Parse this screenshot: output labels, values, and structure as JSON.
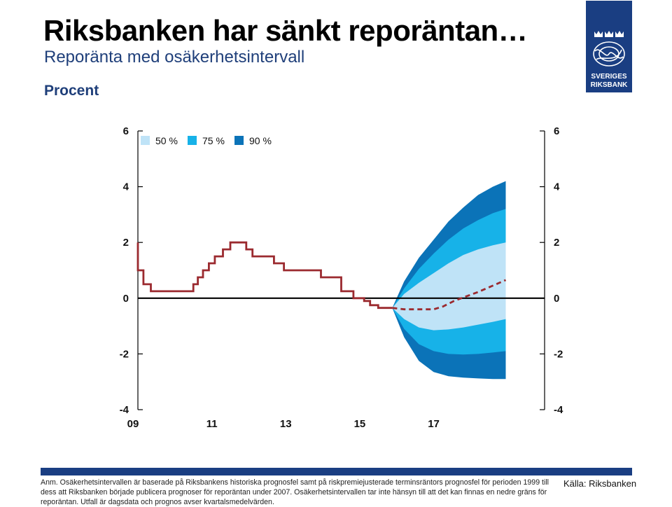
{
  "header": {
    "title": "Riksbanken har sänkt reporäntan…",
    "subtitle": "Reporänta med osäkerhetsintervall",
    "unit": "Procent"
  },
  "logo": {
    "line1": "SVERIGES",
    "line2": "RIKSBANK",
    "icon": "crowns-and-lion-emblem",
    "color": "#1a3e82"
  },
  "chart_data": {
    "type": "area",
    "title": "Reporänta med osäkerhetsintervall",
    "ylabel": "Procent",
    "xlabel": "",
    "xlim": [
      2009.0,
      2020.0
    ],
    "ylim": [
      -4,
      6
    ],
    "y_ticks": [
      -4,
      -2,
      0,
      2,
      4,
      6
    ],
    "x_ticks": [
      {
        "x": 2009.0,
        "label": "09"
      },
      {
        "x": 2011.0,
        "label": "11"
      },
      {
        "x": 2013.0,
        "label": "13"
      },
      {
        "x": 2015.0,
        "label": "15"
      },
      {
        "x": 2017.0,
        "label": "17"
      }
    ],
    "grid": false,
    "legend_position": "top-left",
    "colors": {
      "outcome": "#9b2a2f",
      "forecast": "#9b2a2f",
      "band_50": "#bfe3f7",
      "band_75": "#17b2e8",
      "band_90": "#0b73b8",
      "axis": "#000000"
    },
    "legend": [
      {
        "name": "50 %",
        "color": "#bfe3f7"
      },
      {
        "name": "75 %",
        "color": "#17b2e8"
      },
      {
        "name": "90 %",
        "color": "#0b73b8"
      }
    ],
    "series": [
      {
        "name": "Reporänta, utfall",
        "style": "step-solid",
        "points": [
          [
            2009.0,
            2.0
          ],
          [
            2009.0,
            1.0
          ],
          [
            2009.15,
            1.0
          ],
          [
            2009.15,
            0.5
          ],
          [
            2009.35,
            0.5
          ],
          [
            2009.35,
            0.25
          ],
          [
            2010.5,
            0.25
          ],
          [
            2010.5,
            0.5
          ],
          [
            2010.62,
            0.5
          ],
          [
            2010.62,
            0.75
          ],
          [
            2010.76,
            0.75
          ],
          [
            2010.76,
            1.0
          ],
          [
            2010.92,
            1.0
          ],
          [
            2010.92,
            1.25
          ],
          [
            2011.08,
            1.25
          ],
          [
            2011.08,
            1.5
          ],
          [
            2011.3,
            1.5
          ],
          [
            2011.3,
            1.75
          ],
          [
            2011.5,
            1.75
          ],
          [
            2011.5,
            2.0
          ],
          [
            2011.93,
            2.0
          ],
          [
            2011.93,
            1.75
          ],
          [
            2012.1,
            1.75
          ],
          [
            2012.1,
            1.5
          ],
          [
            2012.68,
            1.5
          ],
          [
            2012.68,
            1.25
          ],
          [
            2012.95,
            1.25
          ],
          [
            2012.95,
            1.0
          ],
          [
            2013.95,
            1.0
          ],
          [
            2013.95,
            0.75
          ],
          [
            2014.5,
            0.75
          ],
          [
            2014.5,
            0.25
          ],
          [
            2014.83,
            0.25
          ],
          [
            2014.83,
            0.0
          ],
          [
            2015.12,
            0.0
          ],
          [
            2015.12,
            -0.1
          ],
          [
            2015.28,
            -0.1
          ],
          [
            2015.28,
            -0.25
          ],
          [
            2015.5,
            -0.25
          ],
          [
            2015.5,
            -0.35
          ],
          [
            2015.88,
            -0.35
          ]
        ]
      },
      {
        "name": "Reporänta, prognos",
        "style": "dashed",
        "points": [
          [
            2015.88,
            -0.35
          ],
          [
            2016.2,
            -0.4
          ],
          [
            2016.6,
            -0.4
          ],
          [
            2017.0,
            -0.4
          ],
          [
            2017.25,
            -0.3
          ],
          [
            2017.55,
            -0.1
          ],
          [
            2017.85,
            0.05
          ],
          [
            2018.2,
            0.22
          ],
          [
            2018.6,
            0.45
          ],
          [
            2018.95,
            0.65
          ]
        ]
      }
    ],
    "bands": [
      {
        "name": "90 %",
        "x": [
          2015.88,
          2016.2,
          2016.6,
          2017.0,
          2017.4,
          2017.8,
          2018.2,
          2018.6,
          2018.95
        ],
        "upper": [
          -0.35,
          0.6,
          1.45,
          2.1,
          2.75,
          3.25,
          3.7,
          4.0,
          4.2
        ],
        "lower": [
          -0.35,
          -1.4,
          -2.25,
          -2.65,
          -2.8,
          -2.85,
          -2.88,
          -2.9,
          -2.9
        ]
      },
      {
        "name": "75 %",
        "x": [
          2015.88,
          2016.2,
          2016.6,
          2017.0,
          2017.4,
          2017.8,
          2018.2,
          2018.6,
          2018.95
        ],
        "upper": [
          -0.35,
          0.35,
          1.05,
          1.6,
          2.1,
          2.5,
          2.8,
          3.05,
          3.2
        ],
        "lower": [
          -0.35,
          -1.1,
          -1.65,
          -1.9,
          -2.0,
          -2.02,
          -2.0,
          -1.95,
          -1.9
        ]
      },
      {
        "name": "50 %",
        "x": [
          2015.88,
          2016.2,
          2016.6,
          2017.0,
          2017.4,
          2017.8,
          2018.2,
          2018.6,
          2018.95
        ],
        "upper": [
          -0.35,
          0.15,
          0.55,
          0.9,
          1.25,
          1.55,
          1.75,
          1.9,
          2.0
        ],
        "lower": [
          -0.35,
          -0.75,
          -1.05,
          -1.15,
          -1.12,
          -1.05,
          -0.95,
          -0.85,
          -0.75
        ]
      }
    ]
  },
  "footer": {
    "note": "Anm. Osäkerhetsintervallen är baserade på Riksbankens historiska prognosfel samt på riskpremiejusterade terminsräntors prognosfel för perioden 1999 till dess att Riksbanken började publicera prognoser för reporäntan under 2007. Osäkerhetsintervallen tar inte hänsyn till att det kan finnas en nedre gräns för reporäntan. Utfall är dagsdata och prognos avser kvartalsmedelvärden.",
    "source": "Källa: Riksbanken"
  }
}
